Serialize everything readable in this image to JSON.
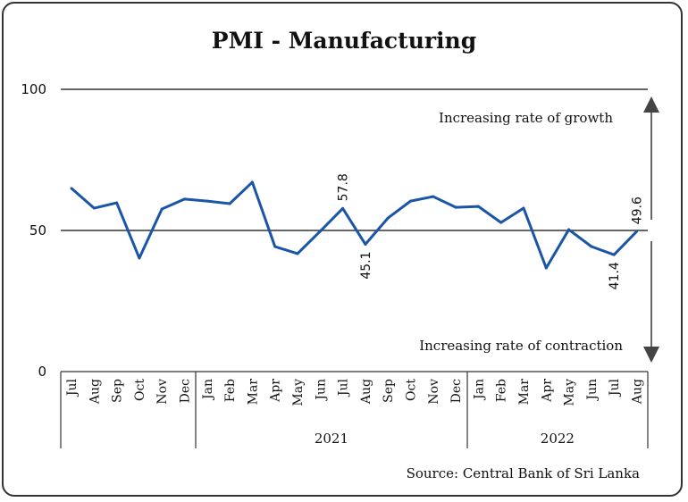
{
  "chart_data": {
    "type": "line",
    "title": "PMI - Manufacturing",
    "xlabel": "",
    "ylabel": "",
    "ylim": [
      0,
      100
    ],
    "yticks": [
      "0",
      "50",
      "100"
    ],
    "categories": [
      "Jul",
      "Aug",
      "Sep",
      "Oct",
      "Nov",
      "Dec",
      "Jan",
      "Feb",
      "Mar",
      "Apr",
      "May",
      "Jun",
      "Jul",
      "Aug",
      "Sep",
      "Oct",
      "Nov",
      "Dec",
      "Jan",
      "Feb",
      "Mar",
      "Apr",
      "May",
      "Jun",
      "Jul",
      "Aug"
    ],
    "year_groups": [
      {
        "label": "",
        "start": 0,
        "end": 5
      },
      {
        "label": "2021",
        "start": 6,
        "end": 17
      },
      {
        "label": "2022",
        "start": 18,
        "end": 25
      }
    ],
    "series": [
      {
        "name": "PMI",
        "color": "#1a55a8",
        "values": [
          64.9,
          57.9,
          59.8,
          40.2,
          57.6,
          61.1,
          60.4,
          59.5,
          67.1,
          44.3,
          41.8,
          49.7,
          57.8,
          45.1,
          54.4,
          60.4,
          62.0,
          58.2,
          58.5,
          52.8,
          57.9,
          36.7,
          50.3,
          44.3,
          41.4,
          49.6
        ]
      }
    ],
    "data_labels": [
      {
        "index": 12,
        "text": "57.8",
        "position": "above"
      },
      {
        "index": 13,
        "text": "45.1",
        "position": "below"
      },
      {
        "index": 24,
        "text": "41.4",
        "position": "below"
      },
      {
        "index": 25,
        "text": "49.6",
        "position": "above"
      }
    ],
    "reference_line": 50,
    "annotations": {
      "growth": "Increasing rate of growth",
      "contraction": "Increasing rate of contraction"
    },
    "source": "Source: Central Bank of Sri Lanka"
  }
}
